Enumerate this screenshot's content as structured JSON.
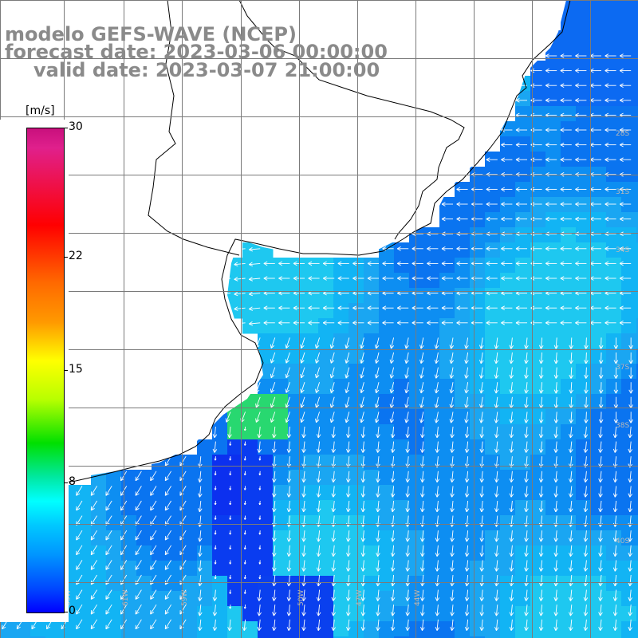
{
  "title": {
    "line1": "modelo GEFS-WAVE (NCEP)",
    "line2": "forecast date: 2023-03-06 00:00:00",
    "line3": "valid date: 2023-03-07 21:00:00"
  },
  "colorbar": {
    "unit": "[m/s]",
    "ticks": [
      "30",
      "22",
      "15",
      "8",
      "0"
    ],
    "tick_values": [
      30,
      22,
      15,
      8,
      0
    ],
    "range": [
      0,
      30
    ],
    "colors": [
      "#0000ff",
      "#0048ff",
      "#0096ff",
      "#00c8ff",
      "#00ffff",
      "#00e8a0",
      "#00e000",
      "#b8ff00",
      "#ffff00",
      "#ff9900",
      "#ff6a00",
      "#ff0000",
      "#e0208c",
      "#c8107d"
    ]
  },
  "grid_labels": {
    "lat": [
      "28S",
      "31S",
      "34S",
      "37S",
      "38S",
      "40S"
    ],
    "lon": [
      "63W",
      "61W",
      "59W",
      "50W",
      "47W",
      "44W"
    ]
  },
  "colors": {
    "land": "#ffffff",
    "coast": "#000000",
    "grid": "#7a7a7a",
    "title": "#8a8a8a",
    "arrows": "#ffffff"
  },
  "wind_field": {
    "description_keys": [
      "ocean",
      "calm_core",
      "coastal_green"
    ],
    "speeds_ms": {
      "ocean": 6,
      "calm_core": 2,
      "coastal_green": 11
    }
  }
}
